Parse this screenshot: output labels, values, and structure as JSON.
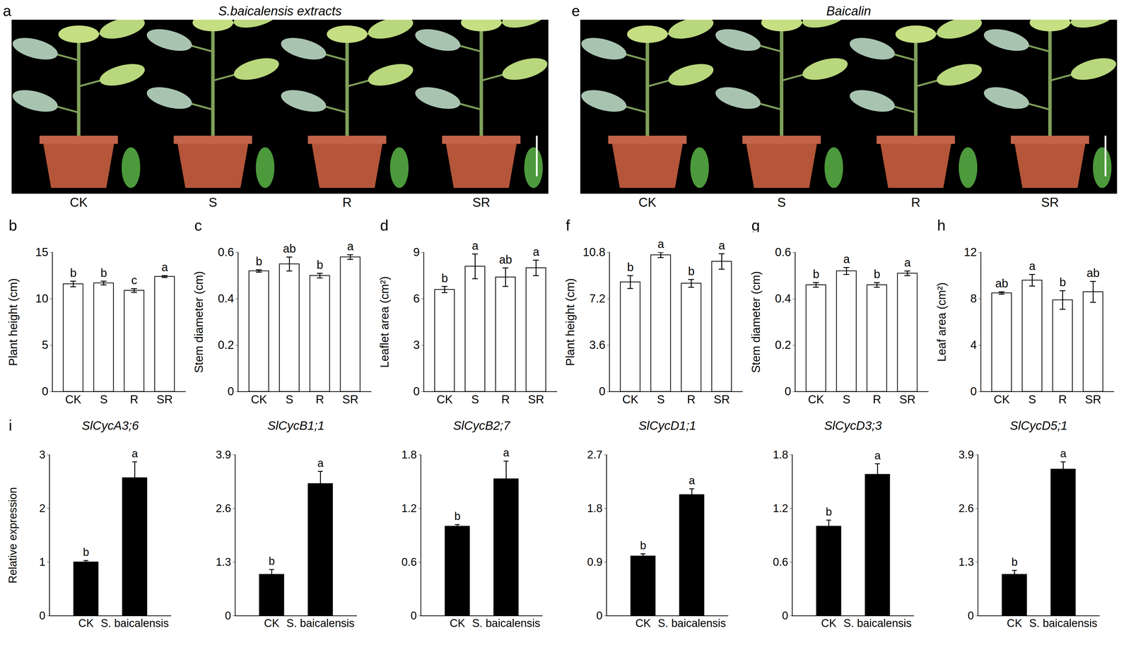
{
  "images": [
    {
      "letter": "a",
      "title": "S.baicalensis extracts",
      "labels": [
        "CK",
        "S",
        "R",
        "SR"
      ]
    },
    {
      "letter": "e",
      "title": "Baicalin",
      "labels": [
        "CK",
        "S",
        "R",
        "SR"
      ]
    }
  ],
  "chart_data": [
    {
      "letter": "b",
      "type": "bar",
      "y_label": "Plant height (cm)",
      "categories": [
        "CK",
        "S",
        "R",
        "SR"
      ],
      "values": [
        11.6,
        11.7,
        10.9,
        12.4
      ],
      "errors": [
        0.3,
        0.2,
        0.2,
        0.1
      ],
      "significance": [
        "b",
        "b",
        "c",
        "a"
      ],
      "color": "#ffffff",
      "ylim": [
        0,
        15
      ],
      "yticks": [
        0,
        5,
        10,
        15
      ]
    },
    {
      "letter": "c",
      "type": "bar",
      "y_label": "Stem diameter (cm)",
      "categories": [
        "CK",
        "S",
        "R",
        "SR"
      ],
      "values": [
        0.52,
        0.55,
        0.5,
        0.58
      ],
      "errors": [
        0.005,
        0.03,
        0.01,
        0.01
      ],
      "significance": [
        "b",
        "ab",
        "b",
        "a"
      ],
      "color": "#ffffff",
      "ylim": [
        0,
        0.6
      ],
      "yticks": [
        0,
        0.2,
        0.4,
        0.6
      ]
    },
    {
      "letter": "d",
      "type": "bar",
      "y_label": "Leaflet area (cm²)",
      "categories": [
        "CK",
        "S",
        "R",
        "SR"
      ],
      "values": [
        6.6,
        8.1,
        7.4,
        8.0
      ],
      "errors": [
        0.2,
        0.8,
        0.6,
        0.5
      ],
      "significance": [
        "b",
        "a",
        "ab",
        "a"
      ],
      "color": "#ffffff",
      "ylim": [
        0,
        9
      ],
      "yticks": [
        0,
        3,
        6,
        9
      ]
    },
    {
      "letter": "f",
      "type": "bar",
      "y_label": "Plant height (cm)",
      "categories": [
        "CK",
        "S",
        "R",
        "SR"
      ],
      "values": [
        8.5,
        10.6,
        8.4,
        10.1
      ],
      "errors": [
        0.5,
        0.2,
        0.3,
        0.6
      ],
      "significance": [
        "b",
        "a",
        "b",
        "a"
      ],
      "color": "#ffffff",
      "ylim": [
        0,
        10.8
      ],
      "yticks": [
        0,
        3.6,
        7.2,
        10.8
      ]
    },
    {
      "letter": "g",
      "type": "bar",
      "y_label": "Stem diameter (cm)",
      "categories": [
        "CK",
        "S",
        "R",
        "SR"
      ],
      "values": [
        0.46,
        0.52,
        0.46,
        0.51
      ],
      "errors": [
        0.01,
        0.015,
        0.01,
        0.01
      ],
      "significance": [
        "b",
        "a",
        "b",
        "a"
      ],
      "color": "#ffffff",
      "ylim": [
        0,
        0.6
      ],
      "yticks": [
        0,
        0.2,
        0.4,
        0.6
      ]
    },
    {
      "letter": "h",
      "type": "bar",
      "y_label": "Leaf area (cm²)",
      "categories": [
        "CK",
        "S",
        "R",
        "SR"
      ],
      "values": [
        8.5,
        9.6,
        7.9,
        8.6
      ],
      "errors": [
        0.1,
        0.5,
        0.8,
        0.9
      ],
      "significance": [
        "ab",
        "a",
        "b",
        "ab"
      ],
      "color": "#ffffff",
      "ylim": [
        0,
        12
      ],
      "yticks": [
        0,
        4,
        8,
        12
      ]
    },
    {
      "letter": "i",
      "type": "bar",
      "title": "SlCycA3;6",
      "y_label": "Relative expression",
      "categories": [
        "CK",
        "S. baicalensis"
      ],
      "values": [
        1.0,
        2.57
      ],
      "errors": [
        0.03,
        0.3
      ],
      "significance": [
        "b",
        "a"
      ],
      "color": "#000000",
      "ylim": [
        0,
        3
      ],
      "yticks": [
        0,
        1,
        2,
        3
      ]
    },
    {
      "type": "bar",
      "title": "SlCycB1;1",
      "categories": [
        "CK",
        "S. baicalensis"
      ],
      "values": [
        1.0,
        3.2
      ],
      "errors": [
        0.12,
        0.3
      ],
      "significance": [
        "b",
        "a"
      ],
      "color": "#000000",
      "ylim": [
        0,
        3.9
      ],
      "yticks": [
        0,
        1.3,
        2.6,
        3.9
      ]
    },
    {
      "type": "bar",
      "title": "SlCycB2;7",
      "categories": [
        "CK",
        "S. baicalensis"
      ],
      "values": [
        1.0,
        1.53
      ],
      "errors": [
        0.02,
        0.2
      ],
      "significance": [
        "b",
        "a"
      ],
      "color": "#000000",
      "ylim": [
        0,
        1.8
      ],
      "yticks": [
        0,
        0.6,
        1.2,
        1.8
      ]
    },
    {
      "type": "bar",
      "title": "SlCycD1;1",
      "categories": [
        "CK",
        "S. baicalensis"
      ],
      "values": [
        1.0,
        2.03
      ],
      "errors": [
        0.04,
        0.1
      ],
      "significance": [
        "b",
        "a"
      ],
      "color": "#000000",
      "ylim": [
        0,
        2.7
      ],
      "yticks": [
        0,
        0.9,
        1.8,
        2.7
      ]
    },
    {
      "type": "bar",
      "title": "SlCycD3;3",
      "categories": [
        "CK",
        "S. baicalensis"
      ],
      "values": [
        1.0,
        1.58
      ],
      "errors": [
        0.07,
        0.12
      ],
      "significance": [
        "b",
        "a"
      ],
      "color": "#000000",
      "ylim": [
        0,
        1.8
      ],
      "yticks": [
        0,
        0.6,
        1.2,
        1.8
      ]
    },
    {
      "type": "bar",
      "title": "SlCycD5;1",
      "categories": [
        "CK",
        "S. baicalensis"
      ],
      "values": [
        1.0,
        3.55
      ],
      "errors": [
        0.1,
        0.18
      ],
      "significance": [
        "b",
        "a"
      ],
      "color": "#000000",
      "ylim": [
        0,
        3.9
      ],
      "yticks": [
        0,
        1.3,
        2.6,
        3.9
      ]
    }
  ]
}
